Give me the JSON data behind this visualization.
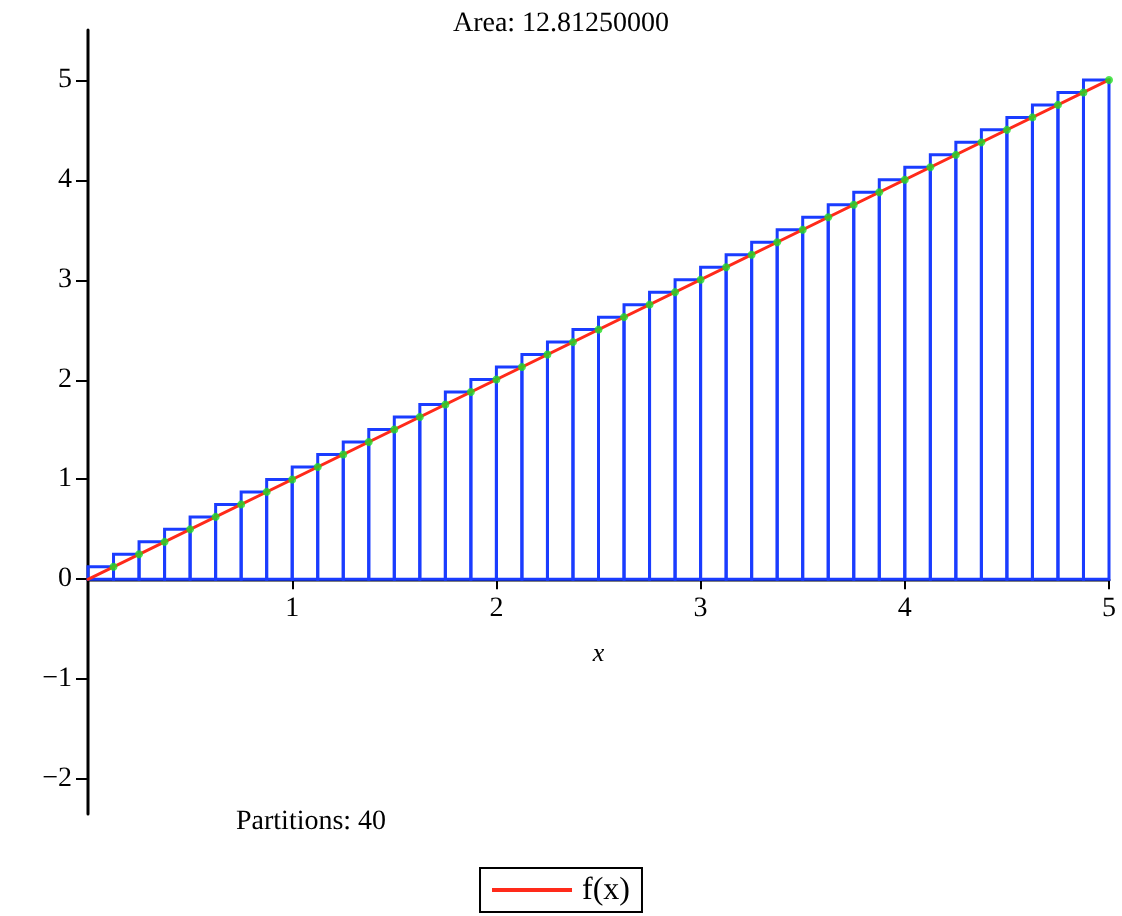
{
  "chart_data": {
    "type": "histogram",
    "title": "Area: 12.81250000",
    "xlabel": "x",
    "annotations": [
      "Partitions: 40"
    ],
    "bins": [
      0,
      0.125,
      0.25,
      0.375,
      0.5,
      0.625,
      0.75,
      0.875,
      1,
      1.125,
      1.25,
      1.375,
      1.5,
      1.625,
      1.75,
      1.875,
      2,
      2.125,
      2.25,
      2.375,
      2.5,
      2.625,
      2.75,
      2.875,
      3,
      3.125,
      3.25,
      3.375,
      3.5,
      3.625,
      3.75,
      3.875,
      4,
      4.125,
      4.25,
      4.375,
      4.5,
      4.625,
      4.75,
      4.875,
      5
    ],
    "values": [
      0.125,
      0.25,
      0.375,
      0.5,
      0.625,
      0.75,
      0.875,
      1,
      1.125,
      1.25,
      1.375,
      1.5,
      1.625,
      1.75,
      1.875,
      2,
      2.125,
      2.25,
      2.375,
      2.5,
      2.625,
      2.75,
      2.875,
      3,
      3.125,
      3.25,
      3.375,
      3.5,
      3.625,
      3.75,
      3.875,
      4,
      4.125,
      4.25,
      4.375,
      4.5,
      4.625,
      4.75,
      4.875,
      5
    ],
    "color": "#1a3cff",
    "series": [
      {
        "type": "line",
        "name": "f(x)",
        "color": "#ff2a1a",
        "x": [
          0,
          5
        ],
        "values": [
          0,
          5
        ]
      },
      {
        "type": "scatter",
        "color": "#22dd22",
        "x": [
          0.125,
          0.25,
          0.375,
          0.5,
          0.625,
          0.75,
          0.875,
          1,
          1.125,
          1.25,
          1.375,
          1.5,
          1.625,
          1.75,
          1.875,
          2,
          2.125,
          2.25,
          2.375,
          2.5,
          2.625,
          2.75,
          2.875,
          3,
          3.125,
          3.25,
          3.375,
          3.5,
          3.625,
          3.75,
          3.875,
          4,
          4.125,
          4.25,
          4.375,
          4.5,
          4.625,
          4.75,
          4.875,
          5
        ],
        "values": [
          0.125,
          0.25,
          0.375,
          0.5,
          0.625,
          0.75,
          0.875,
          1,
          1.125,
          1.25,
          1.375,
          1.5,
          1.625,
          1.75,
          1.875,
          2,
          2.125,
          2.25,
          2.375,
          2.5,
          2.625,
          2.75,
          2.875,
          3,
          3.125,
          3.25,
          3.375,
          3.5,
          3.625,
          3.75,
          3.875,
          4,
          4.125,
          4.25,
          4.375,
          4.5,
          4.625,
          4.75,
          4.875,
          5
        ]
      }
    ],
    "xlim": [
      0,
      5
    ],
    "xticks": [
      1,
      2,
      3,
      4,
      5
    ],
    "ylim": [
      -2.35,
      5.5
    ],
    "yticks": [
      -2,
      -1,
      0,
      1,
      2,
      3,
      4,
      5
    ],
    "grid": false,
    "legend": "bottom"
  }
}
